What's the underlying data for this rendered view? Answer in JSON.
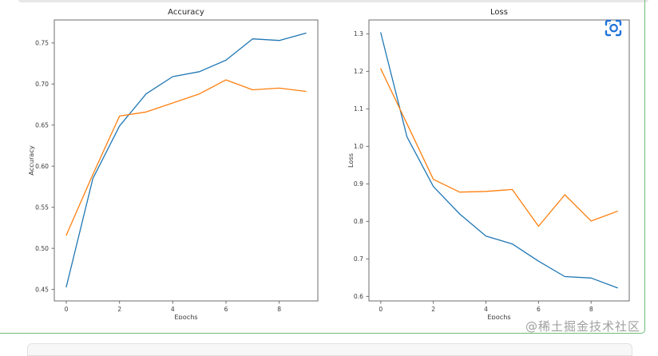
{
  "page": {
    "watermark": "@稀土掘金技术社区",
    "selection_border_color": "#72bd78",
    "scan_icon_color": "#2272d9"
  },
  "chart_data": [
    {
      "type": "line",
      "title": "Accuracy",
      "xlabel": "Epochs",
      "ylabel": "Accuracy",
      "x": [
        0,
        1,
        2,
        3,
        4,
        5,
        6,
        7,
        8,
        9
      ],
      "series": [
        {
          "name": "blue-series",
          "color": "#1f77b4",
          "values": [
            0.453,
            0.585,
            0.649,
            0.688,
            0.709,
            0.715,
            0.729,
            0.755,
            0.753,
            0.762
          ]
        },
        {
          "name": "orange-series",
          "color": "#ff7f0e",
          "values": [
            0.516,
            0.59,
            0.661,
            0.666,
            0.677,
            0.688,
            0.705,
            0.693,
            0.695,
            0.691
          ]
        }
      ],
      "xlim": [
        -0.45,
        9.45
      ],
      "ylim": [
        0.436,
        0.778
      ],
      "xticks": [
        0,
        2,
        4,
        6,
        8
      ],
      "xtick_labels": [
        "0",
        "2",
        "4",
        "6",
        "8"
      ],
      "yticks": [
        0.45,
        0.5,
        0.55,
        0.6,
        0.65,
        0.7,
        0.75
      ],
      "ytick_labels": [
        "0.45",
        "0.50",
        "0.55",
        "0.60",
        "0.65",
        "0.70",
        "0.75"
      ],
      "grid": false,
      "legend": "none"
    },
    {
      "type": "line",
      "title": "Loss",
      "xlabel": "Epochs",
      "ylabel": "Loss",
      "x": [
        0,
        1,
        2,
        3,
        4,
        5,
        6,
        7,
        8,
        9
      ],
      "series": [
        {
          "name": "blue-series",
          "color": "#1f77b4",
          "values": [
            1.303,
            1.025,
            0.893,
            0.82,
            0.761,
            0.74,
            0.694,
            0.653,
            0.649,
            0.623
          ]
        },
        {
          "name": "orange-series",
          "color": "#ff7f0e",
          "values": [
            1.207,
            1.06,
            0.912,
            0.878,
            0.88,
            0.885,
            0.787,
            0.871,
            0.801,
            0.827
          ]
        }
      ],
      "xlim": [
        -0.45,
        9.45
      ],
      "ylim": [
        0.588,
        1.337
      ],
      "xticks": [
        0,
        2,
        4,
        6,
        8
      ],
      "xtick_labels": [
        "0",
        "2",
        "4",
        "6",
        "8"
      ],
      "yticks": [
        0.6,
        0.7,
        0.8,
        0.9,
        1.0,
        1.1,
        1.2,
        1.3
      ],
      "ytick_labels": [
        "0.6",
        "0.7",
        "0.8",
        "0.9",
        "1.0",
        "1.1",
        "1.2",
        "1.3"
      ],
      "grid": false,
      "legend": "none"
    }
  ]
}
